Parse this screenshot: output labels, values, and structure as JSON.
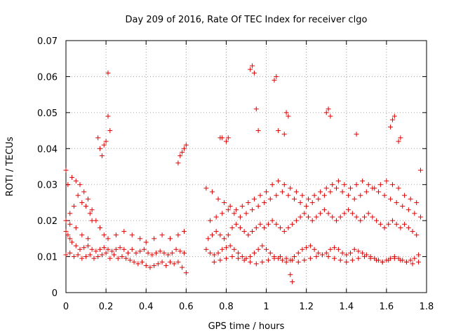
{
  "chart_data": {
    "type": "scatter",
    "title": "Day 209 of 2016, Rate Of TEC Index for receiver clgo",
    "xlabel": "GPS time / hours",
    "ylabel": "ROTI / TECUs",
    "xlim": [
      0,
      1.8
    ],
    "ylim": [
      0,
      0.07
    ],
    "xticks": [
      "0",
      "0.2",
      "0.4",
      "0.6",
      "0.8",
      "1",
      "1.2",
      "1.4",
      "1.6",
      "1.8"
    ],
    "yticks": [
      "0",
      "0.01",
      "0.02",
      "0.03",
      "0.04",
      "0.05",
      "0.06",
      "0.07"
    ],
    "grid": true,
    "marker": "+",
    "marker_color": "#e00000",
    "x": [
      0.0,
      0.01,
      0.02,
      0.03,
      0.05,
      0.07,
      0.09,
      0.11,
      0.13,
      0.15,
      0.17,
      0.19,
      0.21,
      0.23,
      0.25,
      0.27,
      0.29,
      0.31,
      0.33,
      0.35,
      0.37,
      0.39,
      0.41,
      0.43,
      0.45,
      0.47,
      0.49,
      0.51,
      0.53,
      0.55,
      0.57,
      0.59,
      0.0,
      0.02,
      0.04,
      0.06,
      0.08,
      0.1,
      0.12,
      0.14,
      0.16,
      0.18,
      0.2,
      0.22,
      0.24,
      0.26,
      0.28,
      0.3,
      0.32,
      0.34,
      0.36,
      0.38,
      0.4,
      0.42,
      0.44,
      0.46,
      0.48,
      0.5,
      0.52,
      0.54,
      0.56,
      0.58,
      0.6,
      0.0,
      0.01,
      0.03,
      0.05,
      0.07,
      0.09,
      0.11,
      0.13,
      0.15,
      0.17,
      0.19,
      0.21,
      0.25,
      0.29,
      0.33,
      0.37,
      0.4,
      0.44,
      0.48,
      0.52,
      0.56,
      0.59,
      0.0,
      0.02,
      0.04,
      0.06,
      0.08,
      0.1,
      0.12,
      0.13,
      0.02,
      0.05,
      0.08,
      0.11,
      0.16,
      0.17,
      0.18,
      0.19,
      0.2,
      0.21,
      0.21,
      0.22,
      0.56,
      0.57,
      0.58,
      0.59,
      0.6,
      0.7,
      0.72,
      0.74,
      0.76,
      0.78,
      0.8,
      0.82,
      0.84,
      0.86,
      0.88,
      0.9,
      0.92,
      0.94,
      0.96,
      0.98,
      1.0,
      1.02,
      1.04,
      1.06,
      1.08,
      1.1,
      1.12,
      1.14,
      1.16,
      1.18,
      1.2,
      1.22,
      1.24,
      1.26,
      1.28,
      1.3,
      1.32,
      1.34,
      1.36,
      1.38,
      1.4,
      1.42,
      1.44,
      1.46,
      1.48,
      1.5,
      1.52,
      1.54,
      1.56,
      1.58,
      1.6,
      1.62,
      1.64,
      1.66,
      1.68,
      1.7,
      1.72,
      1.74,
      1.76,
      0.71,
      0.73,
      0.75,
      0.77,
      0.79,
      0.81,
      0.83,
      0.85,
      0.87,
      0.89,
      0.91,
      0.93,
      0.95,
      0.97,
      0.99,
      1.01,
      1.03,
      1.05,
      1.07,
      1.09,
      1.11,
      1.13,
      1.15,
      1.17,
      1.19,
      1.21,
      1.23,
      1.25,
      1.27,
      1.29,
      1.31,
      1.33,
      1.35,
      1.37,
      1.39,
      1.41,
      1.43,
      1.45,
      1.47,
      1.49,
      1.51,
      1.53,
      1.55,
      1.57,
      1.59,
      1.61,
      1.63,
      1.65,
      1.67,
      1.69,
      1.71,
      1.73,
      1.75,
      0.7,
      0.73,
      0.76,
      0.79,
      0.82,
      0.85,
      0.88,
      0.91,
      0.94,
      0.97,
      1.0,
      1.03,
      1.06,
      1.09,
      1.12,
      1.15,
      1.18,
      1.21,
      1.24,
      1.27,
      1.3,
      1.33,
      1.36,
      1.39,
      1.42,
      1.45,
      1.48,
      1.51,
      1.54,
      1.57,
      1.6,
      1.63,
      1.66,
      1.69,
      1.72,
      1.75,
      0.72,
      0.75,
      0.78,
      0.81,
      0.84,
      0.87,
      0.9,
      0.93,
      0.96,
      0.99,
      1.02,
      1.05,
      1.08,
      1.11,
      1.14,
      1.17,
      1.2,
      1.23,
      1.26,
      1.29,
      1.32,
      1.35,
      1.38,
      1.41,
      1.44,
      1.47,
      1.5,
      1.53,
      1.56,
      1.59,
      1.62,
      1.65,
      1.68,
      1.71,
      1.74,
      1.77,
      0.74,
      0.77,
      0.8,
      0.83,
      0.86,
      0.89,
      0.92,
      0.95,
      0.98,
      1.01,
      1.04,
      1.07,
      1.1,
      1.13,
      1.16,
      1.19,
      1.22,
      1.25,
      1.28,
      1.31,
      1.34,
      1.37,
      1.4,
      1.43,
      1.46,
      1.49,
      1.52,
      1.55,
      1.58,
      1.61,
      1.64,
      1.67,
      1.7,
      1.73,
      1.76,
      0.77,
      0.78,
      0.8,
      0.81,
      0.92,
      0.93,
      0.94,
      0.95,
      0.96,
      1.04,
      1.05,
      1.06,
      1.09,
      1.1,
      1.11,
      1.3,
      1.31,
      1.32,
      1.45,
      1.62,
      1.63,
      1.64,
      1.66,
      1.67,
      1.12,
      1.13,
      1.77
    ],
    "y": [
      0.017,
      0.016,
      0.015,
      0.014,
      0.013,
      0.012,
      0.0125,
      0.013,
      0.012,
      0.0115,
      0.012,
      0.0125,
      0.012,
      0.0115,
      0.012,
      0.0125,
      0.012,
      0.011,
      0.012,
      0.011,
      0.0115,
      0.012,
      0.011,
      0.0105,
      0.011,
      0.0115,
      0.011,
      0.0105,
      0.011,
      0.012,
      0.0115,
      0.011,
      0.0105,
      0.011,
      0.01,
      0.0105,
      0.0095,
      0.01,
      0.0105,
      0.0095,
      0.01,
      0.0105,
      0.011,
      0.0095,
      0.0105,
      0.0095,
      0.01,
      0.0095,
      0.009,
      0.0085,
      0.008,
      0.0085,
      0.0075,
      0.007,
      0.0075,
      0.008,
      0.0085,
      0.0075,
      0.0085,
      0.008,
      0.0085,
      0.007,
      0.0055,
      0.034,
      0.03,
      0.032,
      0.031,
      0.03,
      0.028,
      0.026,
      0.023,
      0.02,
      0.018,
      0.016,
      0.015,
      0.016,
      0.017,
      0.016,
      0.015,
      0.014,
      0.015,
      0.016,
      0.015,
      0.016,
      0.017,
      0.02,
      0.022,
      0.024,
      0.027,
      0.025,
      0.024,
      0.022,
      0.02,
      0.019,
      0.018,
      0.016,
      0.015,
      0.043,
      0.04,
      0.038,
      0.041,
      0.042,
      0.049,
      0.061,
      0.045,
      0.036,
      0.038,
      0.039,
      0.04,
      0.041,
      0.012,
      0.011,
      0.0105,
      0.011,
      0.012,
      0.0125,
      0.013,
      0.012,
      0.011,
      0.01,
      0.0095,
      0.01,
      0.011,
      0.012,
      0.013,
      0.012,
      0.011,
      0.01,
      0.0095,
      0.009,
      0.0085,
      0.009,
      0.01,
      0.011,
      0.012,
      0.0125,
      0.013,
      0.012,
      0.011,
      0.0105,
      0.011,
      0.012,
      0.0125,
      0.012,
      0.011,
      0.0105,
      0.011,
      0.012,
      0.0115,
      0.011,
      0.0105,
      0.01,
      0.0095,
      0.009,
      0.0085,
      0.009,
      0.0095,
      0.01,
      0.0095,
      0.009,
      0.0085,
      0.009,
      0.0095,
      0.0105,
      0.015,
      0.016,
      0.017,
      0.016,
      0.015,
      0.016,
      0.018,
      0.019,
      0.018,
      0.017,
      0.016,
      0.017,
      0.018,
      0.019,
      0.018,
      0.019,
      0.02,
      0.019,
      0.018,
      0.017,
      0.018,
      0.019,
      0.02,
      0.021,
      0.022,
      0.021,
      0.02,
      0.021,
      0.022,
      0.023,
      0.022,
      0.021,
      0.02,
      0.021,
      0.022,
      0.023,
      0.022,
      0.021,
      0.02,
      0.021,
      0.022,
      0.021,
      0.02,
      0.019,
      0.018,
      0.019,
      0.02,
      0.019,
      0.018,
      0.019,
      0.018,
      0.017,
      0.016,
      0.029,
      0.028,
      0.026,
      0.025,
      0.024,
      0.023,
      0.024,
      0.025,
      0.026,
      0.027,
      0.028,
      0.03,
      0.031,
      0.03,
      0.029,
      0.028,
      0.027,
      0.026,
      0.027,
      0.028,
      0.029,
      0.03,
      0.031,
      0.03,
      0.029,
      0.03,
      0.031,
      0.03,
      0.029,
      0.03,
      0.031,
      0.03,
      0.029,
      0.027,
      0.026,
      0.025,
      0.02,
      0.021,
      0.022,
      0.023,
      0.022,
      0.021,
      0.022,
      0.023,
      0.024,
      0.025,
      0.026,
      0.027,
      0.028,
      0.027,
      0.026,
      0.025,
      0.024,
      0.025,
      0.026,
      0.027,
      0.028,
      0.029,
      0.028,
      0.027,
      0.026,
      0.027,
      0.028,
      0.029,
      0.028,
      0.027,
      0.026,
      0.025,
      0.024,
      0.023,
      0.022,
      0.021,
      0.0085,
      0.009,
      0.0095,
      0.01,
      0.0095,
      0.009,
      0.0085,
      0.008,
      0.0085,
      0.009,
      0.0095,
      0.01,
      0.0095,
      0.009,
      0.0085,
      0.009,
      0.0095,
      0.01,
      0.0105,
      0.01,
      0.0095,
      0.009,
      0.0085,
      0.009,
      0.0095,
      0.01,
      0.0095,
      0.009,
      0.0085,
      0.009,
      0.0095,
      0.009,
      0.0085,
      0.008,
      0.0085,
      0.043,
      0.043,
      0.042,
      0.043,
      0.062,
      0.063,
      0.061,
      0.051,
      0.045,
      0.059,
      0.06,
      0.045,
      0.044,
      0.05,
      0.049,
      0.05,
      0.051,
      0.049,
      0.044,
      0.046,
      0.048,
      0.049,
      0.042,
      0.043,
      0.005,
      0.003,
      0.034
    ]
  }
}
